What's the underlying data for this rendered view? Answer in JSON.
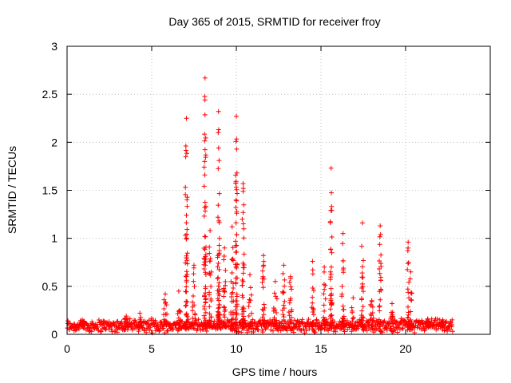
{
  "chart_data": {
    "type": "scatter",
    "title": "Day 365 of 2015, SRMTID for receiver froy",
    "xlabel": "GPS time / hours",
    "ylabel": "SRMTID / TECUs",
    "xlim": [
      0,
      25
    ],
    "ylim": [
      0,
      3
    ],
    "xticks": [
      0,
      5,
      10,
      15,
      20
    ],
    "yticks": [
      0,
      0.5,
      1,
      1.5,
      2,
      2.5,
      3
    ],
    "ytick_labels": [
      "0",
      "0.5",
      "1",
      "1.5",
      "2",
      "2.5",
      "3"
    ],
    "grid": true,
    "marker": "plus",
    "series": [
      {
        "name": "SRMTID",
        "color": "#ff0000",
        "baseline": {
          "x_range": [
            0,
            22.8
          ],
          "level": 0.09,
          "jitter": 0.05,
          "count": 900
        },
        "events": [
          {
            "center": 0.9,
            "peak": 0.15,
            "width": 0.25
          },
          {
            "center": 3.5,
            "peak": 0.19,
            "width": 0.2
          },
          {
            "center": 4.3,
            "peak": 0.22,
            "width": 0.2
          },
          {
            "center": 5.8,
            "peak": 0.42,
            "width": 0.2
          },
          {
            "center": 6.6,
            "peak": 0.45,
            "width": 0.25
          },
          {
            "center": 7.05,
            "peak": 2.25,
            "width": 0.12
          },
          {
            "center": 7.5,
            "peak": 0.72,
            "width": 0.2
          },
          {
            "center": 8.15,
            "peak": 2.67,
            "width": 0.12
          },
          {
            "center": 8.45,
            "peak": 1.08,
            "width": 0.15
          },
          {
            "center": 8.95,
            "peak": 2.32,
            "width": 0.12
          },
          {
            "center": 9.3,
            "peak": 0.9,
            "width": 0.15
          },
          {
            "center": 9.75,
            "peak": 1.12,
            "width": 0.15
          },
          {
            "center": 10.0,
            "peak": 2.27,
            "width": 0.1
          },
          {
            "center": 10.4,
            "peak": 1.57,
            "width": 0.12
          },
          {
            "center": 10.8,
            "peak": 0.62,
            "width": 0.2
          },
          {
            "center": 11.6,
            "peak": 0.82,
            "width": 0.15
          },
          {
            "center": 12.3,
            "peak": 0.55,
            "width": 0.2
          },
          {
            "center": 12.8,
            "peak": 0.72,
            "width": 0.15
          },
          {
            "center": 13.2,
            "peak": 0.6,
            "width": 0.2
          },
          {
            "center": 14.5,
            "peak": 0.76,
            "width": 0.15
          },
          {
            "center": 15.2,
            "peak": 0.7,
            "width": 0.15
          },
          {
            "center": 15.6,
            "peak": 1.73,
            "width": 0.1
          },
          {
            "center": 16.3,
            "peak": 1.05,
            "width": 0.15
          },
          {
            "center": 16.9,
            "peak": 0.38,
            "width": 0.2
          },
          {
            "center": 17.45,
            "peak": 1.16,
            "width": 0.12
          },
          {
            "center": 18.0,
            "peak": 0.35,
            "width": 0.2
          },
          {
            "center": 18.5,
            "peak": 1.13,
            "width": 0.12
          },
          {
            "center": 19.2,
            "peak": 0.32,
            "width": 0.2
          },
          {
            "center": 20.15,
            "peak": 0.96,
            "width": 0.1
          },
          {
            "center": 20.3,
            "peak": 0.65,
            "width": 0.15
          },
          {
            "center": 21.3,
            "peak": 0.16,
            "width": 0.2
          },
          {
            "center": 22.2,
            "peak": 0.15,
            "width": 0.2
          }
        ]
      }
    ]
  }
}
